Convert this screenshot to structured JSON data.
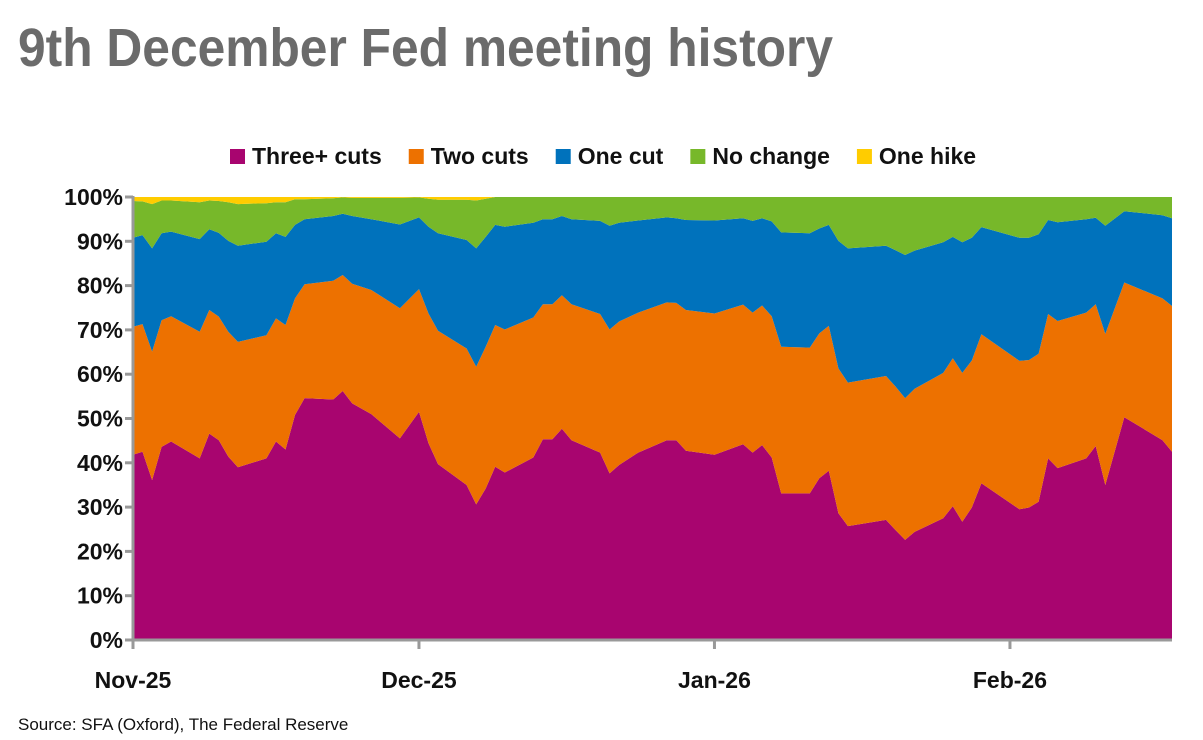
{
  "chart_data": {
    "type": "area",
    "stacked": true,
    "title": "9th December Fed meeting history",
    "source": "Source: SFA (Oxford), The Federal Reserve",
    "legend_position": "top",
    "ylim": [
      0,
      100
    ],
    "y_ticks": [
      "0%",
      "10%",
      "20%",
      "30%",
      "40%",
      "50%",
      "60%",
      "70%",
      "80%",
      "90%",
      "100%"
    ],
    "x_ticks": [
      {
        "date": "2025-11-01",
        "label": "Nov-25"
      },
      {
        "date": "2025-12-01",
        "label": "Dec-25"
      },
      {
        "date": "2026-01-01",
        "label": "Jan-26"
      },
      {
        "date": "2026-02-01",
        "label": "Feb-26"
      }
    ],
    "xlim": [
      "2025-11-01",
      "2026-02-18"
    ],
    "grid": false,
    "x": [
      "2025-11-01",
      "2025-11-02",
      "2025-11-03",
      "2025-11-04",
      "2025-11-05",
      "2025-11-08",
      "2025-11-09",
      "2025-11-10",
      "2025-11-11",
      "2025-11-12",
      "2025-11-15",
      "2025-11-16",
      "2025-11-17",
      "2025-11-18",
      "2025-11-19",
      "2025-11-22",
      "2025-11-23",
      "2025-11-24",
      "2025-11-26",
      "2025-11-29",
      "2025-12-01",
      "2025-12-02",
      "2025-12-03",
      "2025-12-06",
      "2025-12-07",
      "2025-12-08",
      "2025-12-09",
      "2025-12-10",
      "2025-12-13",
      "2025-12-14",
      "2025-12-15",
      "2025-12-16",
      "2025-12-17",
      "2025-12-20",
      "2025-12-21",
      "2025-12-22",
      "2025-12-24",
      "2025-12-27",
      "2025-12-28",
      "2025-12-29",
      "2026-01-01",
      "2026-01-04",
      "2026-01-05",
      "2026-01-06",
      "2026-01-07",
      "2026-01-08",
      "2026-01-11",
      "2026-01-12",
      "2026-01-13",
      "2026-01-14",
      "2026-01-15",
      "2026-01-19",
      "2026-01-20",
      "2026-01-21",
      "2026-01-22",
      "2026-01-25",
      "2026-01-26",
      "2026-01-27",
      "2026-01-28",
      "2026-01-29",
      "2026-02-02",
      "2026-02-03",
      "2026-02-04",
      "2026-02-05",
      "2026-02-06",
      "2026-02-09",
      "2026-02-10",
      "2026-02-11",
      "2026-02-13",
      "2026-02-17",
      "2026-02-18"
    ],
    "series": [
      {
        "name": "Three+ cuts",
        "color": "#A8056F",
        "values": [
          41.8,
          42.5,
          36.1,
          43.6,
          44.8,
          41.0,
          46.6,
          45.1,
          41.4,
          39.0,
          41.0,
          44.8,
          43.0,
          50.8,
          54.6,
          54.3,
          56.2,
          53.4,
          51.0,
          45.5,
          51.5,
          44.4,
          39.7,
          35.0,
          30.6,
          34.2,
          39.1,
          37.8,
          41.2,
          45.3,
          45.3,
          47.7,
          45.1,
          42.3,
          37.6,
          39.5,
          42.3,
          45.1,
          45.1,
          42.7,
          41.8,
          44.2,
          42.3,
          44.0,
          41.2,
          33.1,
          33.1,
          36.5,
          38.2,
          28.6,
          25.7,
          27.1,
          24.8,
          22.6,
          24.4,
          27.5,
          30.2,
          26.7,
          29.9,
          35.4,
          29.5,
          29.9,
          31.2,
          41.0,
          38.8,
          41.0,
          43.8,
          35.0,
          50.3,
          45.1,
          42.5
        ]
      },
      {
        "name": "Two cuts",
        "color": "#ED7100",
        "values": [
          28.9,
          28.8,
          29.0,
          28.6,
          28.3,
          28.6,
          27.9,
          27.9,
          28.2,
          28.3,
          27.8,
          27.8,
          28.1,
          26.3,
          25.7,
          26.8,
          26.2,
          27.0,
          28.0,
          29.4,
          27.7,
          29.3,
          30.1,
          30.8,
          31.1,
          32.0,
          32.0,
          32.3,
          31.6,
          30.5,
          30.5,
          30.1,
          30.7,
          31.3,
          32.5,
          32.4,
          31.6,
          31.1,
          31.0,
          31.8,
          31.9,
          31.5,
          31.6,
          31.5,
          31.9,
          33.1,
          32.9,
          32.7,
          32.7,
          32.7,
          32.4,
          32.5,
          32.4,
          32.0,
          32.3,
          32.8,
          33.4,
          33.6,
          33.2,
          33.6,
          33.5,
          33.3,
          33.4,
          32.6,
          33.2,
          32.9,
          32.0,
          34.1,
          30.4,
          32.0,
          32.9
        ]
      },
      {
        "name": "One cut",
        "color": "#0072BC",
        "values": [
          20.1,
          20.1,
          23.3,
          19.6,
          19.1,
          20.9,
          18.2,
          18.9,
          20.5,
          21.7,
          21.1,
          19.2,
          19.9,
          16.6,
          14.7,
          14.6,
          13.8,
          15.3,
          16.0,
          18.9,
          16.2,
          19.6,
          22.0,
          24.5,
          26.7,
          24.8,
          22.6,
          23.2,
          21.4,
          19.2,
          19.2,
          17.9,
          19.2,
          21.0,
          23.4,
          22.3,
          20.8,
          19.2,
          19.1,
          20.3,
          21.0,
          19.5,
          20.7,
          19.7,
          21.4,
          25.8,
          25.8,
          23.7,
          22.8,
          28.8,
          30.3,
          29.4,
          30.8,
          32.3,
          31.2,
          29.5,
          27.4,
          29.5,
          27.7,
          24.2,
          27.8,
          27.6,
          27.0,
          21.2,
          22.3,
          21.1,
          19.5,
          24.4,
          16.1,
          18.8,
          19.8
        ]
      },
      {
        "name": "No change",
        "color": "#77B82A",
        "values": [
          8.3,
          7.6,
          10.0,
          7.4,
          7.0,
          8.3,
          6.5,
          7.2,
          8.7,
          9.4,
          8.7,
          7.0,
          7.8,
          5.8,
          4.5,
          4.0,
          3.7,
          4.1,
          4.8,
          6.0,
          4.5,
          6.3,
          7.6,
          9.1,
          10.8,
          8.6,
          6.3,
          6.7,
          5.8,
          5.0,
          5.0,
          4.3,
          5.0,
          5.4,
          6.5,
          5.8,
          5.3,
          4.6,
          4.8,
          5.2,
          5.3,
          4.8,
          5.4,
          4.8,
          5.5,
          8.0,
          8.2,
          7.1,
          6.3,
          9.9,
          11.6,
          11.0,
          12.0,
          13.1,
          12.1,
          10.2,
          9.0,
          10.2,
          9.2,
          6.8,
          9.2,
          9.2,
          8.4,
          5.2,
          5.7,
          5.0,
          4.7,
          6.5,
          3.2,
          4.1,
          4.8
        ]
      },
      {
        "name": "One hike",
        "color": "#FFCC00",
        "values": [
          0.9,
          1.0,
          1.6,
          0.8,
          0.8,
          1.2,
          0.8,
          0.9,
          1.2,
          1.6,
          1.4,
          1.2,
          1.2,
          0.5,
          0.5,
          0.3,
          0.1,
          0.2,
          0.2,
          0.2,
          0.1,
          0.4,
          0.6,
          0.6,
          0.8,
          0.4,
          0,
          0,
          0,
          0,
          0,
          0,
          0,
          0,
          0,
          0,
          0,
          0,
          0,
          0,
          0,
          0,
          0,
          0,
          0,
          0,
          0,
          0,
          0,
          0,
          0,
          0,
          0,
          0,
          0,
          0,
          0,
          0,
          0,
          0,
          0,
          0,
          0,
          0,
          0,
          0,
          0,
          0,
          0,
          0,
          0
        ]
      }
    ]
  }
}
